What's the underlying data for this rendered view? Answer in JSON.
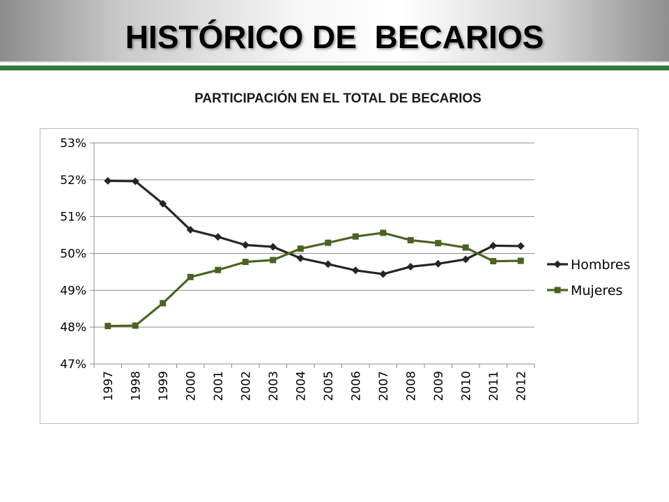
{
  "header": {
    "title": "HISTÓRICO DE  BECARIOS"
  },
  "colors": {
    "accent_green": "#2f7a3a",
    "hombres": "#252525",
    "mujeres": "#4a6325",
    "grid": "#8c8c8c"
  },
  "chart_data": {
    "type": "line",
    "title": "PARTICIPACIÓN EN EL TOTAL DE BECARIOS",
    "xlabel": "",
    "ylabel": "",
    "ylim": [
      47,
      53
    ],
    "y_ticks": [
      "47%",
      "48%",
      "49%",
      "50%",
      "51%",
      "52%",
      "53%"
    ],
    "grid": true,
    "legend_position": "right",
    "categories": [
      "1997",
      "1998",
      "1999",
      "2000",
      "2001",
      "2002",
      "2003",
      "2004",
      "2005",
      "2006",
      "2007",
      "2008",
      "2009",
      "2010",
      "2011",
      "2012"
    ],
    "series": [
      {
        "name": "Hombres",
        "marker": "diamond",
        "values": [
          51.97,
          51.96,
          51.35,
          50.64,
          50.45,
          50.23,
          50.18,
          49.87,
          49.71,
          49.54,
          49.44,
          49.64,
          49.72,
          49.84,
          50.21,
          50.2
        ]
      },
      {
        "name": "Mujeres",
        "marker": "square",
        "values": [
          48.03,
          48.04,
          48.65,
          49.36,
          49.55,
          49.77,
          49.82,
          50.13,
          50.29,
          50.46,
          50.56,
          50.36,
          50.28,
          50.16,
          49.79,
          49.8
        ]
      }
    ]
  }
}
